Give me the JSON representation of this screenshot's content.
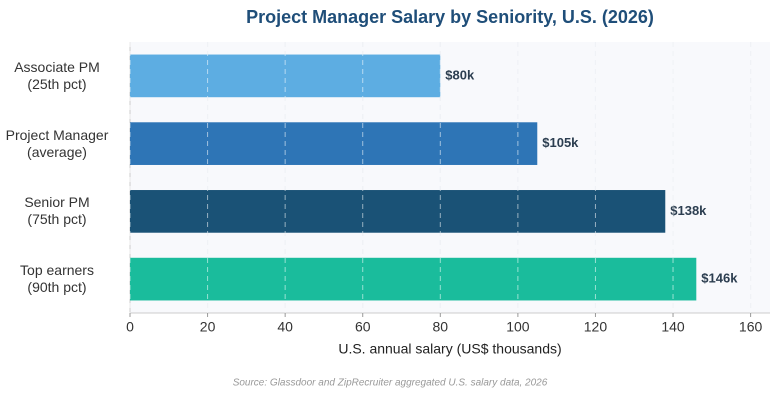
{
  "chart_data": {
    "type": "hbar",
    "title": "Project Manager Salary by Seniority, U.S. (2026)",
    "x_label": "U.S. annual salary (US$ thousands)",
    "source": "Source: Glassdoor and ZipRecruiter aggregated U.S. salary data, 2026",
    "categories": [
      "Associate PM\n(25th pct)",
      "Project Manager\n(average)",
      "Senior PM\n(75th pct)",
      "Top earners\n(90th pct)"
    ],
    "values": [
      80,
      105,
      138,
      146
    ],
    "value_labels": [
      "$80k",
      "$105k",
      "$138k",
      "$146k"
    ],
    "colors": [
      "#5dade2",
      "#2e75b6",
      "#1a5276",
      "#1abc9c"
    ],
    "xlim": [
      0,
      165
    ],
    "xticks": [
      0,
      20,
      40,
      60,
      80,
      100,
      120,
      140,
      160
    ],
    "grid": true
  }
}
